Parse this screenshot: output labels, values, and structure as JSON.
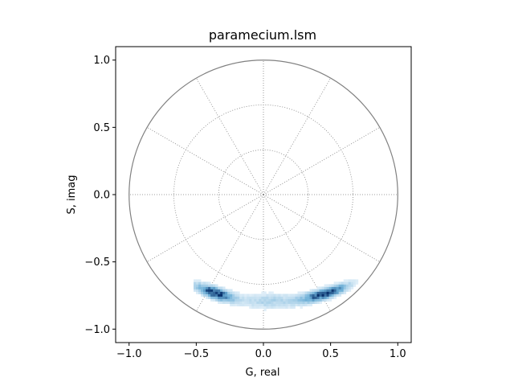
{
  "chart_data": {
    "type": "heatmap",
    "title": "paramecium.lsm",
    "xlabel": "G, real",
    "ylabel": "S, imag",
    "xlim": [
      -1.1,
      1.1
    ],
    "ylim": [
      -1.1,
      1.1
    ],
    "x_ticks": [
      -1.0,
      -0.5,
      0.0,
      0.5,
      1.0
    ],
    "y_ticks": [
      -1.0,
      -0.5,
      0.0,
      0.5,
      1.0
    ],
    "x_tick_labels": [
      "−1.0",
      "−0.5",
      "0.0",
      "0.5",
      "1.0"
    ],
    "y_tick_labels": [
      "−1.0",
      "−0.5",
      "0.0",
      "0.5",
      "1.0"
    ],
    "polar_grid": {
      "unit_circle_radius": 1.0,
      "dotted_circle_radii": [
        0.333,
        0.667
      ],
      "spoke_angles_deg": [
        0,
        30,
        60,
        90,
        120,
        150,
        180,
        210,
        240,
        270,
        300,
        330
      ]
    },
    "density_clusters": [
      {
        "center_g": -0.37,
        "center_s": -0.72,
        "peak_density": 1.0
      },
      {
        "center_g": 0.45,
        "center_s": -0.75,
        "peak_density": 0.95
      },
      {
        "center_g": 0.05,
        "center_s": -0.8,
        "peak_density": 0.25
      }
    ],
    "grid": false,
    "colors": {
      "colormap_low": "#f7fbff",
      "colormap_high": "#08306b",
      "circle": "#808080",
      "grid": "#808080"
    }
  }
}
